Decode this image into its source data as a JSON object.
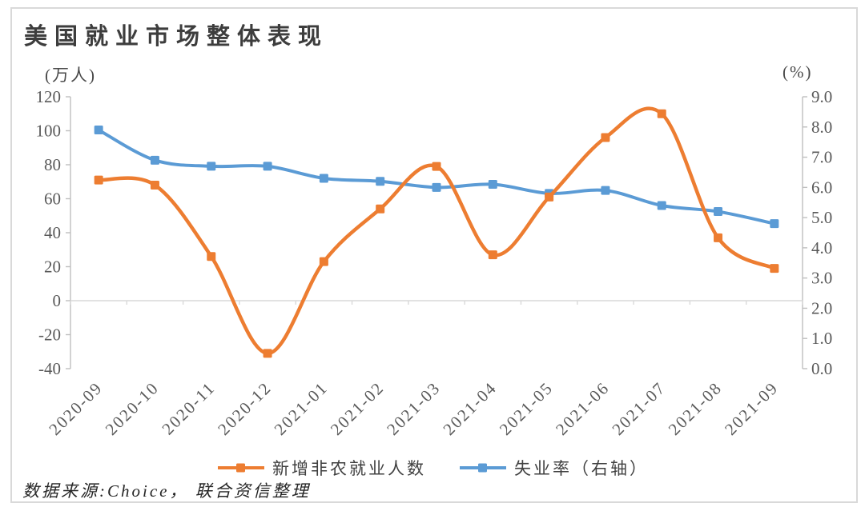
{
  "figure": {
    "title": "美国就业市场整体表现",
    "left_axis_unit": "(万人)",
    "right_axis_unit": "(%)",
    "source": "数据来源:Choice， 联合资信整理"
  },
  "legend": [
    {
      "label": "新增非农就业人数",
      "color": "#ED7D31"
    },
    {
      "label": "失业率（右轴）",
      "color": "#5B9BD5"
    }
  ],
  "colors": {
    "orange_series": "#ED7D31",
    "blue_series": "#5B9BD5",
    "axis_line": "#BFBFBF",
    "zero_axis_line": "#D9D9D9",
    "tick_text": "#595959",
    "title_text": "#3D3D3D",
    "frame_border": "#D9D9D9"
  },
  "chart_data": {
    "type": "line",
    "smooth": true,
    "marker": "square",
    "grid": false,
    "legend_position": "bottom",
    "title": "美国就业市场整体表现",
    "categories": [
      "2020-09",
      "2020-10",
      "2020-11",
      "2020-12",
      "2021-01",
      "2021-02",
      "2021-03",
      "2021-04",
      "2021-05",
      "2021-06",
      "2021-07",
      "2021-08",
      "2021-09"
    ],
    "series": [
      {
        "name": "新增非农就业人数",
        "axis": "left",
        "unit": "万人",
        "color": "#ED7D31",
        "values": [
          71,
          68,
          26,
          -31,
          23,
          54,
          79,
          27,
          61,
          96,
          110,
          37,
          19
        ]
      },
      {
        "name": "失业率（右轴）",
        "axis": "right",
        "unit": "%",
        "color": "#5B9BD5",
        "values": [
          7.9,
          6.9,
          6.7,
          6.7,
          6.3,
          6.2,
          6.0,
          6.1,
          5.8,
          5.9,
          5.4,
          5.2,
          4.8
        ]
      }
    ],
    "left_axis": {
      "label": "(万人)",
      "min": -40,
      "max": 120,
      "ticks": [
        "120",
        "100",
        "80",
        "60",
        "40",
        "20",
        "0",
        "-20",
        "-40"
      ]
    },
    "right_axis": {
      "label": "(%)",
      "min": 0,
      "max": 9,
      "ticks": [
        "9.0",
        "8.0",
        "7.0",
        "6.0",
        "5.0",
        "4.0",
        "3.0",
        "2.0",
        "1.0",
        "0.0"
      ]
    }
  }
}
